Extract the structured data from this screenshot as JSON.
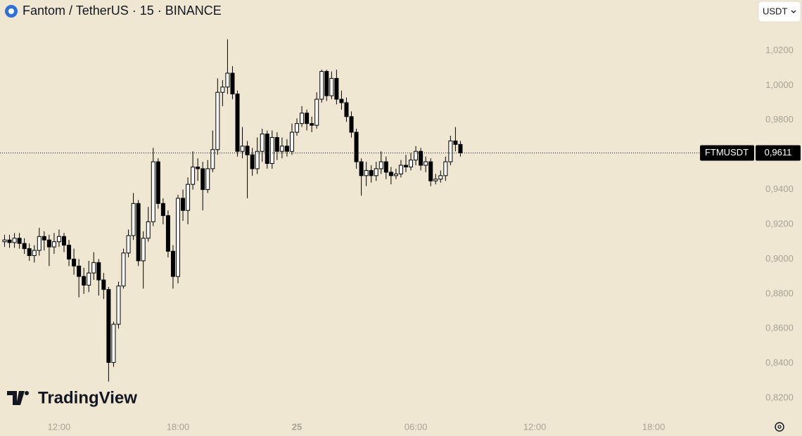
{
  "header": {
    "title": "Fantom / TetherUS · 15 · BINANCE",
    "currency": "USDT"
  },
  "watermark": "TradingView",
  "chart_data": {
    "type": "candlestick",
    "x": [
      9.25,
      9.5,
      9.75,
      10,
      10.25,
      10.5,
      10.75,
      11,
      11.25,
      11.5,
      11.75,
      12,
      12.25,
      12.5,
      12.75,
      13,
      13.25,
      13.5,
      13.75,
      14,
      14.25,
      14.5,
      14.75,
      15,
      15.25,
      15.5,
      15.75,
      16,
      16.25,
      16.5,
      16.75,
      17,
      17.25,
      17.5,
      17.75,
      18,
      18.25,
      18.5,
      18.75,
      19,
      19.25,
      19.5,
      19.75,
      20,
      20.25,
      20.5,
      20.75,
      21,
      21.25,
      21.5,
      21.75,
      22,
      22.25,
      22.5,
      22.75,
      23,
      23.25,
      23.5,
      23.75,
      24,
      24.25,
      24.5,
      24.75,
      25,
      25.25,
      25.5,
      25.75,
      26,
      26.25,
      26.5,
      26.75,
      27,
      27.25,
      27.5,
      27.75,
      28,
      28.25,
      28.5,
      28.75,
      29,
      29.25,
      29.5,
      29.75,
      30,
      30.25,
      30.5,
      30.75,
      31,
      31.25,
      31.5,
      31.75,
      32,
      32.25
    ],
    "open": [
      0.91,
      0.911,
      0.9095,
      0.912,
      0.909,
      0.906,
      0.902,
      0.905,
      0.913,
      0.911,
      0.907,
      0.91,
      0.913,
      0.908,
      0.9,
      0.896,
      0.89,
      0.885,
      0.892,
      0.898,
      0.888,
      0.8825,
      0.8405,
      0.8625,
      0.8845,
      0.9035,
      0.9135,
      0.932,
      0.899,
      0.912,
      0.9215,
      0.956,
      0.932,
      0.925,
      0.9045,
      0.89,
      0.935,
      0.928,
      0.943,
      0.953,
      0.952,
      0.94,
      0.952,
      0.963,
      0.996,
      0.999,
      1.007,
      0.995,
      0.962,
      0.965,
      0.96,
      0.952,
      0.962,
      0.972,
      0.955,
      0.97,
      0.962,
      0.965,
      0.962,
      0.973,
      0.978,
      0.984,
      0.978,
      0.977,
      0.992,
      1.008,
      0.994,
      1.004,
      0.992,
      0.99,
      0.982,
      0.973,
      0.956,
      0.948,
      0.951,
      0.948,
      0.952,
      0.956,
      0.95,
      0.948,
      0.949,
      0.954,
      0.953,
      0.957,
      0.962,
      0.954,
      0.956,
      0.945,
      0.946,
      0.948,
      0.956,
      0.968,
      0.966
    ],
    "high": [
      0.914,
      0.914,
      0.915,
      0.915,
      0.912,
      0.909,
      0.908,
      0.918,
      0.916,
      0.914,
      0.915,
      0.917,
      0.915,
      0.911,
      0.906,
      0.9,
      0.895,
      0.899,
      0.904,
      0.9,
      0.892,
      0.884,
      0.864,
      0.887,
      0.906,
      0.917,
      0.938,
      0.934,
      0.916,
      0.93,
      0.964,
      0.958,
      0.935,
      0.928,
      0.908,
      0.937,
      0.94,
      0.947,
      0.962,
      0.958,
      0.956,
      0.957,
      0.974,
      1.004,
      1.003,
      1.0265,
      1.011,
      0.997,
      0.976,
      0.968,
      0.964,
      0.97,
      0.975,
      0.974,
      0.974,
      0.973,
      0.97,
      0.969,
      0.978,
      0.981,
      0.988,
      0.986,
      0.982,
      0.996,
      1.009,
      1.009,
      1.008,
      1.009,
      0.997,
      0.993,
      0.985,
      0.975,
      0.958,
      0.956,
      0.954,
      0.956,
      0.962,
      0.959,
      0.953,
      0.952,
      0.957,
      0.96,
      0.961,
      0.965,
      0.964,
      0.959,
      0.958,
      0.949,
      0.951,
      0.959,
      0.971,
      0.976,
      0.968
    ],
    "low": [
      0.907,
      0.9065,
      0.9065,
      0.906,
      0.903,
      0.899,
      0.898,
      0.902,
      0.905,
      0.896,
      0.903,
      0.907,
      0.904,
      0.896,
      0.891,
      0.878,
      0.88,
      0.881,
      0.888,
      0.879,
      0.877,
      0.8295,
      0.838,
      0.86,
      0.883,
      0.901,
      0.911,
      0.896,
      0.883,
      0.91,
      0.919,
      0.929,
      0.92,
      0.901,
      0.883,
      0.886,
      0.922,
      0.92,
      0.94,
      0.945,
      0.928,
      0.938,
      0.95,
      0.96,
      0.988,
      0.995,
      0.992,
      0.959,
      0.958,
      0.935,
      0.948,
      0.949,
      0.956,
      0.952,
      0.952,
      0.957,
      0.958,
      0.959,
      0.96,
      0.971,
      0.976,
      0.974,
      0.973,
      0.975,
      0.99,
      0.991,
      0.992,
      0.989,
      0.986,
      0.979,
      0.97,
      0.952,
      0.9365,
      0.942,
      0.944,
      0.945,
      0.949,
      0.946,
      0.943,
      0.946,
      0.947,
      0.95,
      0.951,
      0.954,
      0.951,
      0.95,
      0.942,
      0.943,
      0.944,
      0.945,
      0.954,
      0.962,
      0.959
    ],
    "close": [
      0.911,
      0.9095,
      0.912,
      0.909,
      0.906,
      0.902,
      0.905,
      0.913,
      0.911,
      0.907,
      0.91,
      0.913,
      0.908,
      0.9,
      0.896,
      0.89,
      0.885,
      0.892,
      0.898,
      0.888,
      0.8825,
      0.8405,
      0.8625,
      0.8845,
      0.9035,
      0.9135,
      0.932,
      0.899,
      0.912,
      0.9215,
      0.956,
      0.932,
      0.925,
      0.9045,
      0.89,
      0.935,
      0.928,
      0.943,
      0.953,
      0.952,
      0.94,
      0.952,
      0.963,
      0.996,
      0.999,
      1.007,
      0.995,
      0.962,
      0.965,
      0.96,
      0.952,
      0.962,
      0.972,
      0.955,
      0.97,
      0.962,
      0.965,
      0.962,
      0.973,
      0.978,
      0.984,
      0.978,
      0.977,
      0.992,
      1.008,
      0.994,
      1.004,
      0.992,
      0.99,
      0.982,
      0.973,
      0.956,
      0.948,
      0.951,
      0.948,
      0.952,
      0.956,
      0.95,
      0.948,
      0.949,
      0.954,
      0.953,
      0.957,
      0.962,
      0.954,
      0.956,
      0.945,
      0.946,
      0.948,
      0.956,
      0.968,
      0.966,
      0.9611
    ],
    "xlim": [
      9.02,
      47.0
    ],
    "xticks": [
      {
        "value": 12,
        "label": "12:00"
      },
      {
        "value": 18,
        "label": "18:00"
      },
      {
        "value": 24,
        "label": "25"
      },
      {
        "value": 30,
        "label": "06:00"
      },
      {
        "value": 36,
        "label": "12:00"
      },
      {
        "value": 42,
        "label": "18:00"
      }
    ],
    "ylim": [
      0.8083,
      1.0491
    ],
    "yticks": [
      {
        "value": 0.82,
        "label": "0,8200"
      },
      {
        "value": 0.84,
        "label": "0,8400"
      },
      {
        "value": 0.86,
        "label": "0,8600"
      },
      {
        "value": 0.88,
        "label": "0,8800"
      },
      {
        "value": 0.9,
        "label": "0,9000"
      },
      {
        "value": 0.92,
        "label": "0,9200"
      },
      {
        "value": 0.94,
        "label": "0,9400"
      },
      {
        "value": 0.96,
        "label": "0,9600"
      },
      {
        "value": 0.98,
        "label": "0,9800"
      },
      {
        "value": 1.0,
        "label": "1,0000"
      },
      {
        "value": 1.02,
        "label": "1,0200"
      }
    ],
    "up_color": "#ffffff",
    "down_color": "#000000",
    "symbol": "FTMUSDT",
    "last_price": {
      "value": 0.9611,
      "label": "0,9611"
    }
  }
}
